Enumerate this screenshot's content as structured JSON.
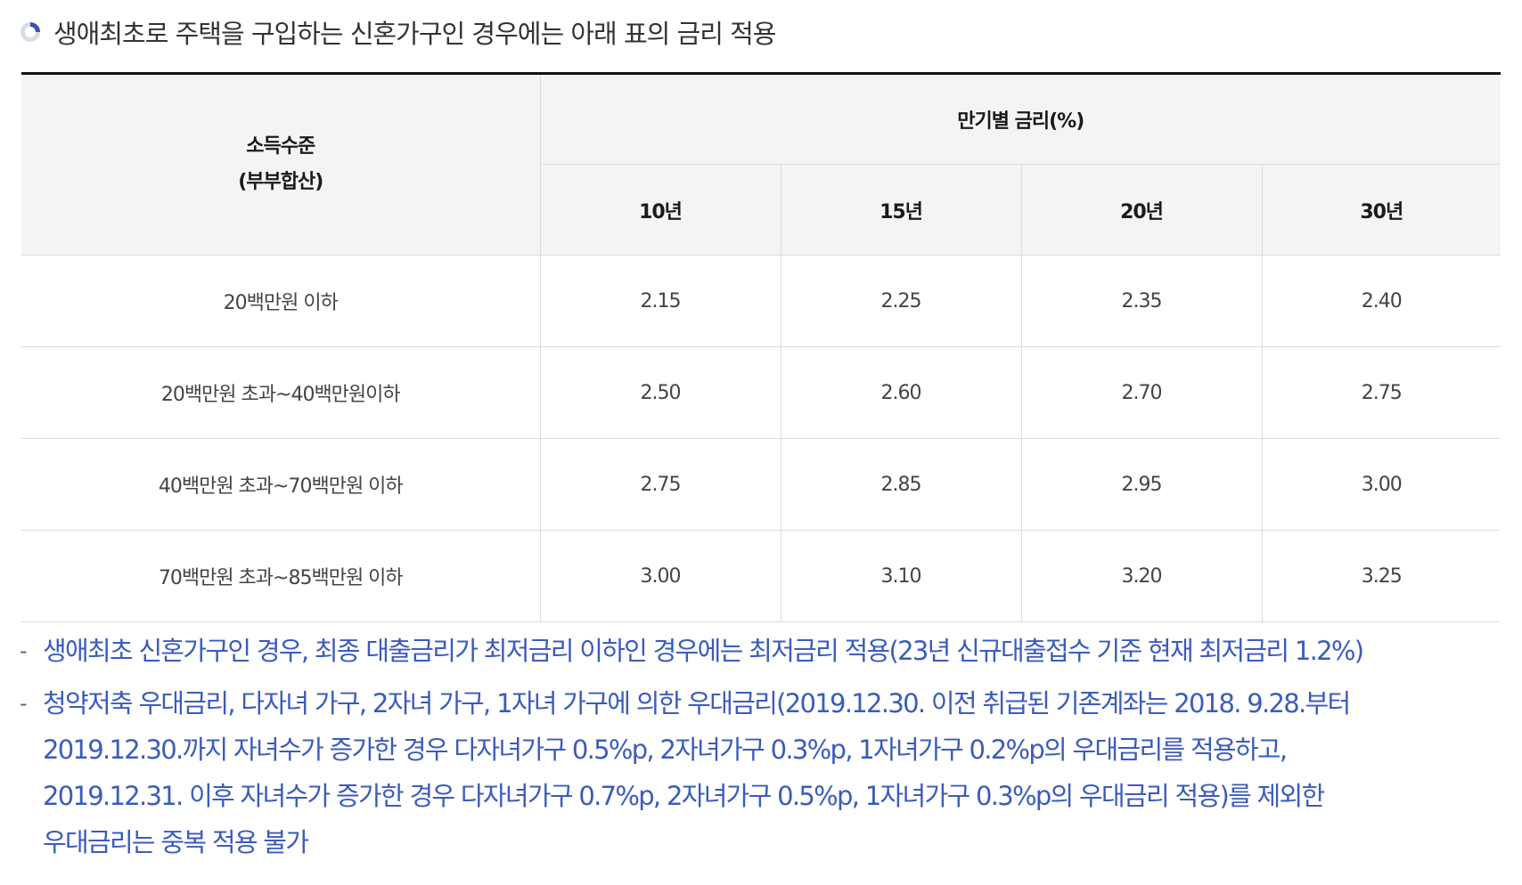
{
  "heading": {
    "icon": "progress-circle-icon",
    "text": "생애최초로 주택을 구입하는 신혼가구인 경우에는 아래 표의 금리 적용"
  },
  "table": {
    "income_header_line1": "소득수준",
    "income_header_line2": "(부부합산)",
    "rate_group_header": "만기별 금리(%)",
    "terms": [
      "10년",
      "15년",
      "20년",
      "30년"
    ],
    "rows": [
      {
        "income": "20백만원 이하",
        "rates": [
          "2.15",
          "2.25",
          "2.35",
          "2.40"
        ]
      },
      {
        "income": "20백만원 초과~40백만원이하",
        "rates": [
          "2.50",
          "2.60",
          "2.70",
          "2.75"
        ]
      },
      {
        "income": "40백만원 초과~70백만원 이하",
        "rates": [
          "2.75",
          "2.85",
          "2.95",
          "3.00"
        ]
      },
      {
        "income": "70백만원 초과~85백만원 이하",
        "rates": [
          "3.00",
          "3.10",
          "3.20",
          "3.25"
        ]
      }
    ]
  },
  "notes": [
    {
      "dash": "-",
      "lines": [
        "생애최초 신혼가구인 경우, 최종 대출금리가 최저금리 이하인 경우에는 최저금리 적용(23년 신규대출접수 기준 현재 최저금리 1.2%)"
      ]
    },
    {
      "dash": "-",
      "lines": [
        "청약저축 우대금리, 다자녀 가구, 2자녀 가구, 1자녀 가구에 의한 우대금리(2019.12.30. 이전 취급된 기존계좌는 2018. 9.28.부터",
        "2019.12.30.까지 자녀수가 증가한 경우 다자녀가구 0.5%p, 2자녀가구 0.3%p, 1자녀가구 0.2%p의 우대금리를 적용하고,",
        "2019.12.31. 이후 자녀수가 증가한 경우 다자녀가구 0.7%p, 2자녀가구 0.5%p, 1자녀가구 0.3%p의 우대금리 적용)를 제외한",
        "우대금리는 중복 적용 불가"
      ]
    }
  ],
  "colors": {
    "note_text": "#3b5bbd",
    "header_bg": "#f4f4f4",
    "border": "#dddddd",
    "top_rule": "#111111",
    "icon_ring": "#d9dde6",
    "icon_arc": "#3a56a8"
  }
}
